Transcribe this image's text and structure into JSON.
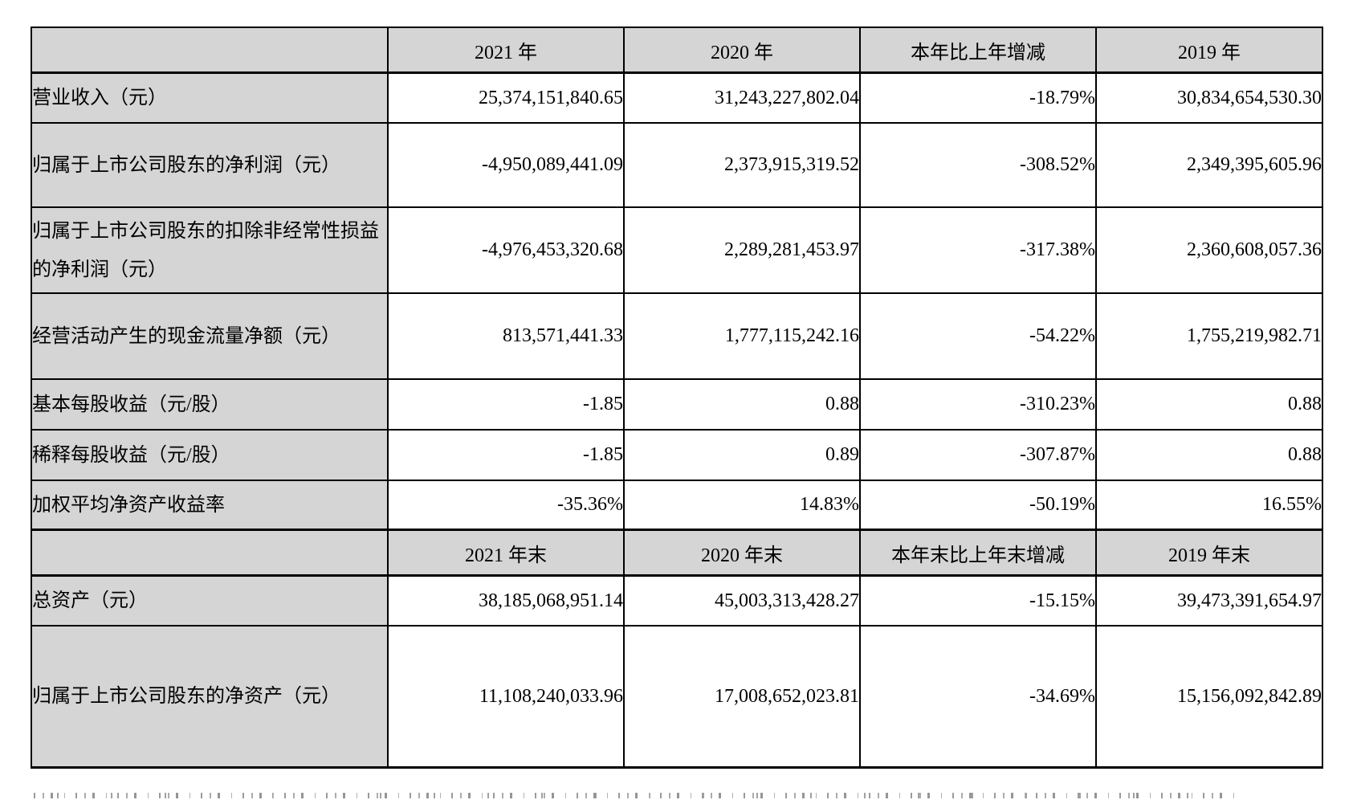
{
  "colors": {
    "header_bg": "#d5d5d5",
    "label_bg": "#d5d5d5",
    "border": "#000000",
    "page_bg": "#ffffff"
  },
  "table": {
    "period_header": {
      "corner": "",
      "cols": [
        "2021 年",
        "2020 年",
        "本年比上年增减",
        "2019 年"
      ]
    },
    "period_rows": [
      {
        "label": "营业收入（元）",
        "values": [
          "25,374,151,840.65",
          "31,243,227,802.04",
          "-18.79%",
          "30,834,654,530.30"
        ]
      },
      {
        "label": "归属于上市公司股东的净利润（元）",
        "values": [
          "-4,950,089,441.09",
          "2,373,915,319.52",
          "-308.52%",
          "2,349,395,605.96"
        ]
      },
      {
        "label": "归属于上市公司股东的扣除非经常性损益的净利润（元）",
        "values": [
          "-4,976,453,320.68",
          "2,289,281,453.97",
          "-317.38%",
          "2,360,608,057.36"
        ]
      },
      {
        "label": "经营活动产生的现金流量净额（元）",
        "values": [
          "813,571,441.33",
          "1,777,115,242.16",
          "-54.22%",
          "1,755,219,982.71"
        ]
      },
      {
        "label": "基本每股收益（元/股）",
        "values": [
          "-1.85",
          "0.88",
          "-310.23%",
          "0.88"
        ]
      },
      {
        "label": "稀释每股收益（元/股）",
        "values": [
          "-1.85",
          "0.89",
          "-307.87%",
          "0.88"
        ]
      },
      {
        "label": "加权平均净资产收益率",
        "values": [
          "-35.36%",
          "14.83%",
          "-50.19%",
          "16.55%"
        ]
      }
    ],
    "eoy_header": {
      "corner": "",
      "cols": [
        "2021 年末",
        "2020 年末",
        "本年末比上年末增减",
        "2019 年末"
      ]
    },
    "eoy_rows": [
      {
        "label": "总资产（元）",
        "values": [
          "38,185,068,951.14",
          "45,003,313,428.27",
          "-15.15%",
          "39,473,391,654.97"
        ]
      },
      {
        "label": "归属于上市公司股东的净资产（元）",
        "values": [
          "11,108,240,033.96",
          "17,008,652,023.81",
          "-34.69%",
          "15,156,092,842.89"
        ]
      }
    ]
  }
}
